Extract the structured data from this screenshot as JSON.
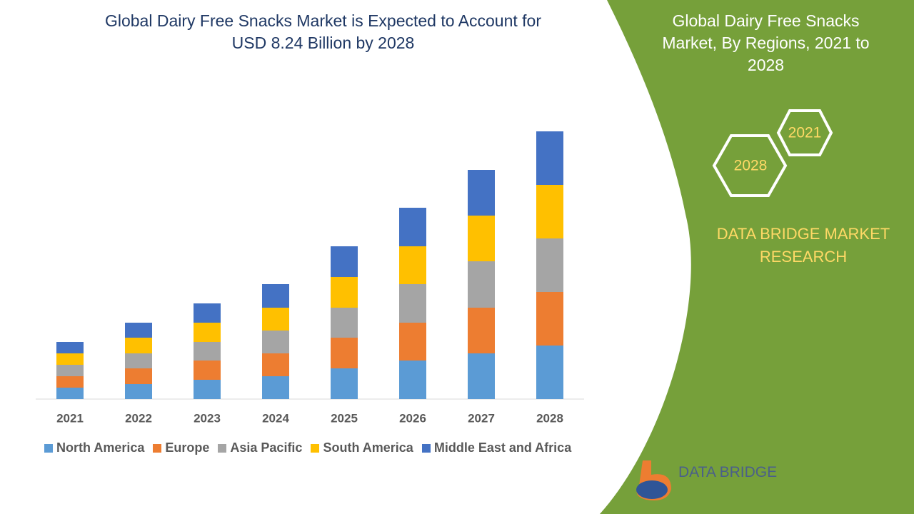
{
  "chart_data": {
    "type": "bar",
    "stacked": true,
    "title": "Global Dairy Free Snacks Market is Expected to Account for USD 8.24 Billion by 2028",
    "categories": [
      "2021",
      "2022",
      "2023",
      "2024",
      "2025",
      "2026",
      "2027",
      "2028"
    ],
    "series": [
      {
        "name": "North America",
        "color": "#5b9bd5",
        "values": [
          16,
          21,
          27,
          32,
          43,
          54,
          64,
          75
        ]
      },
      {
        "name": "Europe",
        "color": "#ed7d31",
        "values": [
          16,
          22,
          27,
          32,
          43,
          53,
          64,
          75
        ]
      },
      {
        "name": "Asia Pacific",
        "color": "#a5a5a5",
        "values": [
          16,
          21,
          26,
          32,
          42,
          54,
          65,
          75
        ]
      },
      {
        "name": "South America",
        "color": "#ffc000",
        "values": [
          16,
          22,
          27,
          32,
          43,
          53,
          64,
          75
        ]
      },
      {
        "name": "Middle East and Africa",
        "color": "#4472c4",
        "values": [
          16,
          21,
          27,
          33,
          43,
          54,
          64,
          75
        ]
      }
    ],
    "ylim": [
      0,
      400
    ]
  },
  "panel": {
    "title": "Global Dairy Free Snacks Market, By Regions, 2021 to 2028",
    "hex_labels": [
      "2021",
      "2028"
    ],
    "brand": "DATA BRIDGE MARKET RESEARCH",
    "logo_text": "DATA BRIDGE"
  }
}
